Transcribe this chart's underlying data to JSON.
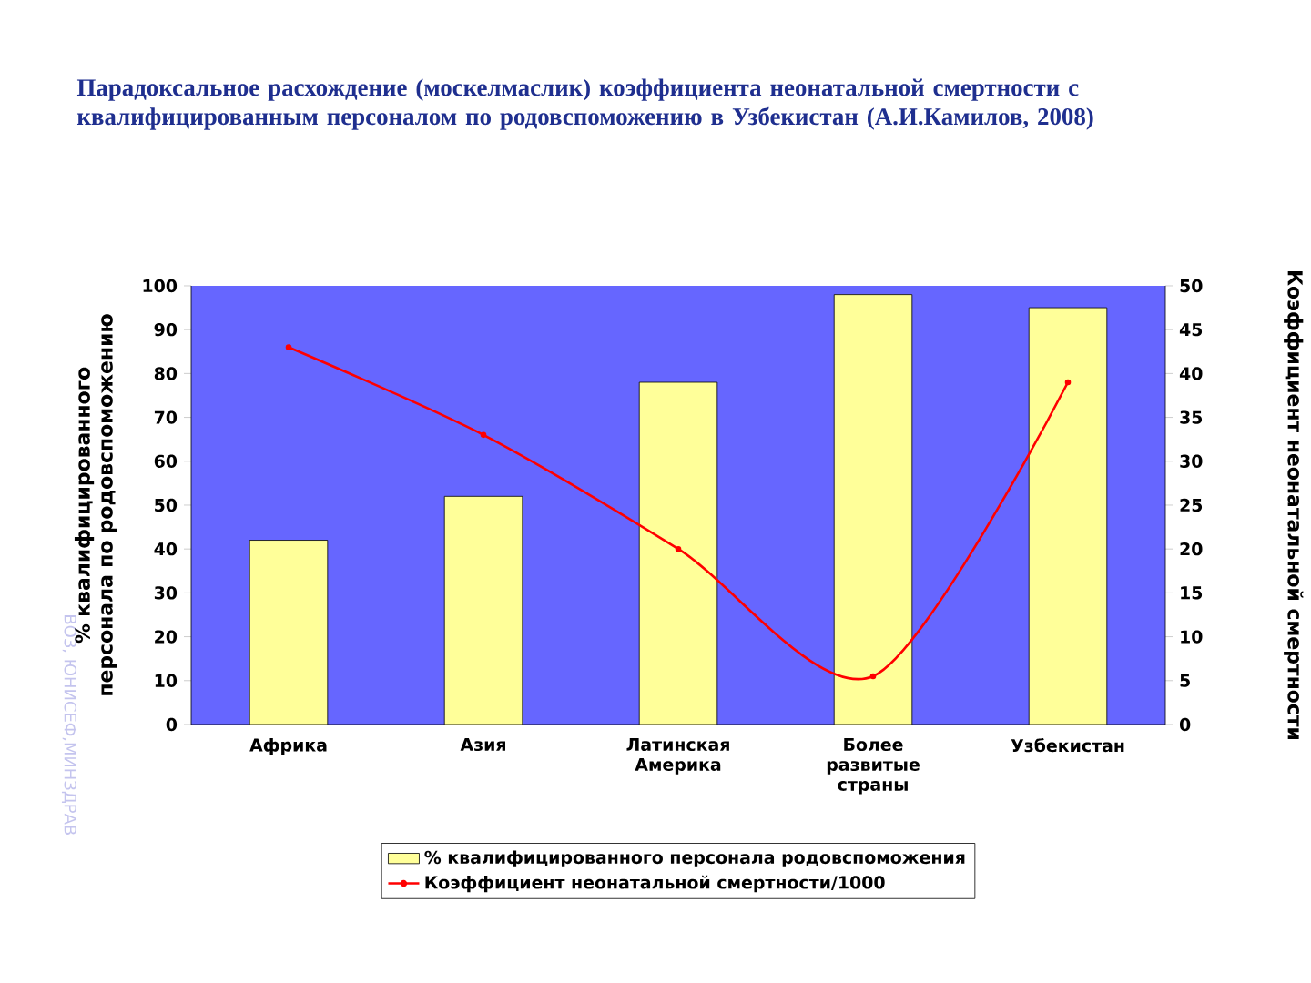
{
  "chart_data": {
    "type": "bar",
    "title": "Парадоксальное расхождение (москелмаслик) коэффициента неонатальной смертности с квалифицированным персоналом по родовспоможению в Узбекистан (А.И.Камилов, 2008)",
    "ylabel": "% квалифицированного персонала по родовспоможению",
    "y2label": "Коэффициент неонатальной смертности",
    "categories": [
      "Африка",
      "Азия",
      "Латинская Америка",
      "Более развитые страны",
      "Узбекистан"
    ],
    "series": [
      {
        "name": "% квалифицированного персонала родовспоможения",
        "color": "#ffff99",
        "values": [
          42,
          52,
          78,
          98,
          95
        ]
      },
      {
        "name": "Коэффициент неонатальной смертности/1000",
        "type": "line",
        "axis": "y2",
        "color": "#ff0000",
        "marker": "circle",
        "line_style": "solid",
        "values": [
          43,
          33,
          20,
          5.5,
          39
        ]
      }
    ],
    "ylim": [
      0,
      100
    ],
    "yticks": [
      0,
      10,
      20,
      30,
      40,
      50,
      60,
      70,
      80,
      90,
      100
    ],
    "y2lim": [
      0,
      50
    ],
    "y2ticks": [
      0,
      5,
      10,
      15,
      20,
      25,
      30,
      35,
      40,
      45,
      50
    ],
    "legend": "bottom",
    "annotations": [
      "ВОЗ, ЮНИСЕФ,МИНЗДРАВ"
    ]
  }
}
